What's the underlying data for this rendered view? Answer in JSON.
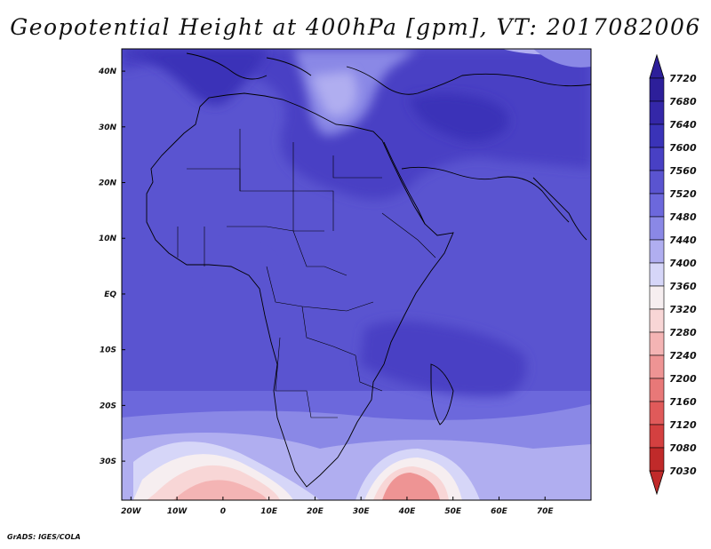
{
  "title": "Geopotential Height at 400hPa [gpm], VT: 2017082006",
  "credit": "GrADS: IGES/COLA",
  "map": {
    "lon_range": [
      -22,
      80
    ],
    "lat_range": [
      -37,
      44
    ],
    "lon_ticks": [
      "20W",
      "10W",
      "0",
      "10E",
      "20E",
      "30E",
      "40E",
      "50E",
      "60E",
      "70E"
    ],
    "lat_ticks": [
      "40N",
      "30N",
      "20N",
      "10N",
      "EQ",
      "10S",
      "20S",
      "30S"
    ]
  },
  "colorbar": {
    "levels": [
      "7720",
      "7680",
      "7640",
      "7600",
      "7560",
      "7520",
      "7480",
      "7440",
      "7400",
      "7360",
      "7320",
      "7280",
      "7240",
      "7200",
      "7160",
      "7120",
      "7080",
      "7030"
    ],
    "colors": [
      "#2d1f9a",
      "#3427a8",
      "#3a33b8",
      "#4840c4",
      "#5a54d0",
      "#6c68dc",
      "#8a88e6",
      "#b0aef0",
      "#d6d6f8",
      "#f6eef0",
      "#f8d6d6",
      "#f4b4b4",
      "#ee9494",
      "#e87878",
      "#e05a5a",
      "#d44040",
      "#c02a2a"
    ]
  }
}
